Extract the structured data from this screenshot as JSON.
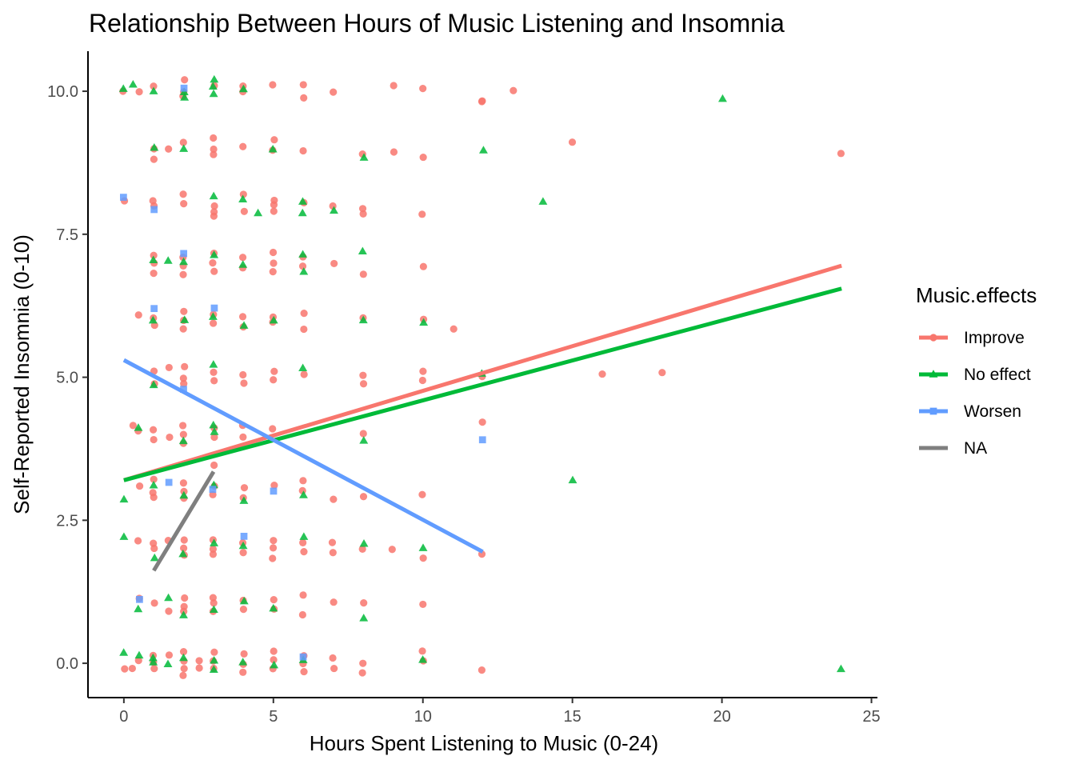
{
  "chart_data": {
    "type": "scatter",
    "title": "Relationship Between Hours of Music Listening and Insomnia",
    "xlabel": "Hours Spent Listening to Music (0-24)",
    "ylabel": "Self-Reported Insomnia (0-10)",
    "xlim": [
      -1.2,
      25.2
    ],
    "ylim": [
      -0.6,
      10.7
    ],
    "x_ticks": [
      0,
      5,
      10,
      15,
      20,
      25
    ],
    "x_tick_labels": [
      "0",
      "5",
      "10",
      "15",
      "20",
      "25"
    ],
    "y_ticks": [
      0,
      2.5,
      5,
      7.5,
      10
    ],
    "y_tick_labels": [
      "0.0",
      "2.5",
      "5.0",
      "7.5",
      "10.0"
    ],
    "grid": false,
    "legend": {
      "title": "Music.effects",
      "placement": "right",
      "entries": [
        {
          "label": "Improve",
          "color": "#F8766D",
          "shape": "circle"
        },
        {
          "label": "No effect",
          "color": "#00BA38",
          "shape": "triangle"
        },
        {
          "label": "Worsen",
          "color": "#619CFF",
          "shape": "square"
        },
        {
          "label": "NA",
          "color": "#7F7F7F",
          "shape": "none"
        }
      ]
    },
    "series": [
      {
        "name": "Improve",
        "color": "#F8766D",
        "shape": "circle",
        "points": [
          [
            0,
            10
          ],
          [
            0.5,
            10
          ],
          [
            1,
            10.1
          ],
          [
            2,
            10.2
          ],
          [
            2,
            10
          ],
          [
            2,
            9.9
          ],
          [
            3,
            10.1
          ],
          [
            4,
            10.1
          ],
          [
            4,
            10
          ],
          [
            5,
            10.1
          ],
          [
            6,
            10.1
          ],
          [
            6,
            9.9
          ],
          [
            7,
            10
          ],
          [
            9,
            10.1
          ],
          [
            10,
            10.05
          ],
          [
            12,
            9.85
          ],
          [
            12,
            9.8
          ],
          [
            13,
            10
          ],
          [
            1,
            8.8
          ],
          [
            1,
            9
          ],
          [
            1.5,
            9
          ],
          [
            2,
            9.1
          ],
          [
            3,
            9.2
          ],
          [
            3,
            9
          ],
          [
            3,
            8.9
          ],
          [
            4,
            9.05
          ],
          [
            5,
            9.15
          ],
          [
            5,
            8.95
          ],
          [
            6,
            8.95
          ],
          [
            8,
            8.9
          ],
          [
            9,
            8.95
          ],
          [
            10,
            8.85
          ],
          [
            15,
            9.1
          ],
          [
            24,
            8.9
          ],
          [
            0,
            8.1
          ],
          [
            1,
            8.1
          ],
          [
            1,
            8
          ],
          [
            2,
            8.2
          ],
          [
            2,
            8.05
          ],
          [
            3,
            8
          ],
          [
            3,
            7.9
          ],
          [
            3,
            7.8
          ],
          [
            4,
            8.2
          ],
          [
            4,
            7.9
          ],
          [
            5,
            8.1
          ],
          [
            5,
            8
          ],
          [
            5,
            7.9
          ],
          [
            6,
            8.05
          ],
          [
            7,
            8
          ],
          [
            8,
            7.95
          ],
          [
            8,
            7.85
          ],
          [
            10,
            7.85
          ],
          [
            1,
            7.15
          ],
          [
            1,
            7
          ],
          [
            1,
            6.8
          ],
          [
            2,
            7.1
          ],
          [
            2,
            6.95
          ],
          [
            2,
            6.8
          ],
          [
            3,
            7.15
          ],
          [
            3,
            7
          ],
          [
            3,
            6.85
          ],
          [
            4,
            7.1
          ],
          [
            4,
            6.9
          ],
          [
            5,
            7.2
          ],
          [
            5,
            7
          ],
          [
            5,
            6.85
          ],
          [
            6,
            7.1
          ],
          [
            6,
            6.95
          ],
          [
            7,
            7
          ],
          [
            8,
            6.8
          ],
          [
            10,
            6.95
          ],
          [
            0.5,
            6.1
          ],
          [
            1,
            6.05
          ],
          [
            1,
            5.9
          ],
          [
            2,
            6.15
          ],
          [
            2,
            6
          ],
          [
            2,
            5.85
          ],
          [
            3,
            6.1
          ],
          [
            3,
            5.95
          ],
          [
            4,
            6.05
          ],
          [
            4,
            5.9
          ],
          [
            5,
            6.05
          ],
          [
            5,
            5.95
          ],
          [
            6,
            6.1
          ],
          [
            6,
            5.85
          ],
          [
            8,
            6.05
          ],
          [
            10,
            6
          ],
          [
            11,
            5.85
          ],
          [
            1,
            5.1
          ],
          [
            1,
            4.9
          ],
          [
            1.5,
            5.15
          ],
          [
            2,
            5.2
          ],
          [
            2,
            5
          ],
          [
            2,
            4.9
          ],
          [
            3,
            5.1
          ],
          [
            3,
            4.95
          ],
          [
            4,
            5.05
          ],
          [
            4,
            4.9
          ],
          [
            5,
            5.1
          ],
          [
            5,
            4.95
          ],
          [
            6,
            5.05
          ],
          [
            8,
            5.05
          ],
          [
            8,
            4.9
          ],
          [
            10,
            5.1
          ],
          [
            10,
            4.95
          ],
          [
            12,
            5
          ],
          [
            16,
            5.05
          ],
          [
            18,
            5.1
          ],
          [
            0.3,
            4.15
          ],
          [
            0.5,
            4.05
          ],
          [
            1,
            4.1
          ],
          [
            1,
            3.9
          ],
          [
            1.5,
            3.95
          ],
          [
            2,
            4.15
          ],
          [
            2,
            4
          ],
          [
            2,
            3.85
          ],
          [
            3,
            4.1
          ],
          [
            3,
            3.95
          ],
          [
            4,
            4.15
          ],
          [
            4,
            3.95
          ],
          [
            5,
            4.1
          ],
          [
            8,
            4
          ],
          [
            12,
            4.2
          ],
          [
            0.5,
            3.1
          ],
          [
            1,
            3.2
          ],
          [
            1,
            3
          ],
          [
            1,
            2.9
          ],
          [
            2,
            3.15
          ],
          [
            2,
            3
          ],
          [
            2,
            2.9
          ],
          [
            3,
            3.45
          ],
          [
            3,
            3.1
          ],
          [
            3,
            2.95
          ],
          [
            4,
            3.05
          ],
          [
            4,
            2.9
          ],
          [
            5,
            3.1
          ],
          [
            6,
            3.2
          ],
          [
            6,
            3
          ],
          [
            7,
            2.85
          ],
          [
            8,
            2.9
          ],
          [
            10,
            2.95
          ],
          [
            0.5,
            2.15
          ],
          [
            1,
            2.1
          ],
          [
            1,
            2
          ],
          [
            1.5,
            2.15
          ],
          [
            2,
            2.15
          ],
          [
            2,
            2
          ],
          [
            2,
            1.9
          ],
          [
            3,
            2.15
          ],
          [
            3,
            2
          ],
          [
            3,
            1.9
          ],
          [
            4,
            2.1
          ],
          [
            4,
            1.95
          ],
          [
            5,
            2.15
          ],
          [
            5,
            2
          ],
          [
            5,
            1.85
          ],
          [
            6,
            2.1
          ],
          [
            6,
            1.95
          ],
          [
            7,
            2.1
          ],
          [
            7,
            1.95
          ],
          [
            8,
            2
          ],
          [
            9,
            2
          ],
          [
            10,
            1.85
          ],
          [
            12,
            1.9
          ],
          [
            0.5,
            1.15
          ],
          [
            1,
            1.05
          ],
          [
            1.5,
            0.9
          ],
          [
            2,
            1.15
          ],
          [
            2,
            1
          ],
          [
            2,
            0.9
          ],
          [
            3,
            1.15
          ],
          [
            3,
            1.05
          ],
          [
            3,
            0.9
          ],
          [
            4,
            1.1
          ],
          [
            4,
            0.95
          ],
          [
            5,
            1.1
          ],
          [
            5,
            0.95
          ],
          [
            6,
            1.2
          ],
          [
            6,
            0.85
          ],
          [
            7,
            1.05
          ],
          [
            8,
            1.05
          ],
          [
            10,
            1.05
          ],
          [
            0,
            -0.1
          ],
          [
            0.3,
            -0.1
          ],
          [
            0.5,
            0.05
          ],
          [
            1,
            0.15
          ],
          [
            1,
            0
          ],
          [
            1,
            -0.1
          ],
          [
            1.5,
            0.15
          ],
          [
            2,
            0.2
          ],
          [
            2,
            0.05
          ],
          [
            2,
            -0.1
          ],
          [
            2,
            -0.2
          ],
          [
            2.5,
            0.05
          ],
          [
            2.5,
            -0.1
          ],
          [
            3,
            0.2
          ],
          [
            3,
            0.05
          ],
          [
            3,
            -0.1
          ],
          [
            4,
            0.15
          ],
          [
            4,
            0
          ],
          [
            4,
            -0.15
          ],
          [
            5,
            0.2
          ],
          [
            5,
            0.05
          ],
          [
            5,
            -0.1
          ],
          [
            6,
            0.15
          ],
          [
            6,
            0
          ],
          [
            6,
            -0.15
          ],
          [
            7,
            0.1
          ],
          [
            7,
            -0.1
          ],
          [
            8,
            0
          ],
          [
            8,
            -0.15
          ],
          [
            10,
            0.2
          ],
          [
            10,
            0.05
          ],
          [
            12,
            -0.1
          ]
        ],
        "trend": {
          "x": [
            0,
            24
          ],
          "y": [
            3.2,
            6.95
          ]
        }
      },
      {
        "name": "No effect",
        "color": "#00BA38",
        "shape": "triangle",
        "points": [
          [
            0,
            10.05
          ],
          [
            0.3,
            10.1
          ],
          [
            1,
            10
          ],
          [
            2,
            10
          ],
          [
            2,
            9.9
          ],
          [
            3,
            10.2
          ],
          [
            3,
            10.1
          ],
          [
            3,
            9.95
          ],
          [
            4,
            10.05
          ],
          [
            20,
            9.85
          ],
          [
            1,
            9
          ],
          [
            2,
            9
          ],
          [
            5,
            9
          ],
          [
            8,
            8.85
          ],
          [
            12,
            8.95
          ],
          [
            3,
            8.15
          ],
          [
            4,
            8.1
          ],
          [
            4.5,
            7.85
          ],
          [
            6,
            8.05
          ],
          [
            6,
            7.85
          ],
          [
            7,
            7.9
          ],
          [
            14,
            8.05
          ],
          [
            1,
            7.05
          ],
          [
            1.5,
            7.05
          ],
          [
            2,
            7
          ],
          [
            3,
            7.15
          ],
          [
            4,
            6.95
          ],
          [
            6,
            7.15
          ],
          [
            6,
            6.85
          ],
          [
            8,
            7.2
          ],
          [
            1,
            6
          ],
          [
            2,
            6
          ],
          [
            3,
            6.05
          ],
          [
            4,
            5.9
          ],
          [
            5,
            6
          ],
          [
            8,
            6
          ],
          [
            10,
            5.95
          ],
          [
            1,
            4.85
          ],
          [
            3,
            5.2
          ],
          [
            6,
            5.15
          ],
          [
            12,
            5.05
          ],
          [
            0.5,
            4.1
          ],
          [
            2,
            3.9
          ],
          [
            3,
            4.15
          ],
          [
            3,
            4.05
          ],
          [
            8,
            3.9
          ],
          [
            0,
            2.85
          ],
          [
            1,
            3.1
          ],
          [
            2,
            2.95
          ],
          [
            3,
            3.1
          ],
          [
            4,
            2.85
          ],
          [
            6,
            2.95
          ],
          [
            15,
            3.2
          ],
          [
            0,
            2.2
          ],
          [
            1,
            1.85
          ],
          [
            2,
            1.9
          ],
          [
            3,
            2.1
          ],
          [
            4,
            2.05
          ],
          [
            6,
            2.2
          ],
          [
            8,
            2.1
          ],
          [
            10,
            2
          ],
          [
            0.5,
            0.95
          ],
          [
            1.5,
            1.15
          ],
          [
            2,
            0.85
          ],
          [
            3,
            0.95
          ],
          [
            4,
            1.1
          ],
          [
            5,
            0.95
          ],
          [
            8,
            0.8
          ],
          [
            0,
            0.2
          ],
          [
            0.5,
            0.15
          ],
          [
            1,
            0.1
          ],
          [
            1,
            0
          ],
          [
            1.5,
            0
          ],
          [
            2,
            0.1
          ],
          [
            3,
            0.05
          ],
          [
            3,
            -0.1
          ],
          [
            4,
            0
          ],
          [
            5,
            -0.05
          ],
          [
            6,
            0.05
          ],
          [
            10,
            0.05
          ],
          [
            24,
            -0.1
          ]
        ],
        "trend": {
          "x": [
            0,
            24
          ],
          "y": [
            3.2,
            6.55
          ]
        }
      },
      {
        "name": "Worsen",
        "color": "#619CFF",
        "shape": "square",
        "points": [
          [
            2,
            10.05
          ],
          [
            0,
            8.15
          ],
          [
            1,
            7.95
          ],
          [
            2,
            7.15
          ],
          [
            1,
            6.2
          ],
          [
            3,
            6.2
          ],
          [
            2,
            4.8
          ],
          [
            1.5,
            3.15
          ],
          [
            3,
            3.05
          ],
          [
            5,
            3
          ],
          [
            12,
            3.9
          ],
          [
            4,
            2.2
          ],
          [
            0.5,
            1.1
          ],
          [
            6,
            0.1
          ]
        ],
        "trend": {
          "x": [
            0,
            12
          ],
          "y": [
            5.3,
            1.95
          ]
        }
      },
      {
        "name": "NA",
        "color": "#7F7F7F",
        "shape": "none",
        "points": [],
        "trend": {
          "x": [
            1,
            3
          ],
          "y": [
            1.62,
            3.35
          ]
        }
      }
    ]
  }
}
